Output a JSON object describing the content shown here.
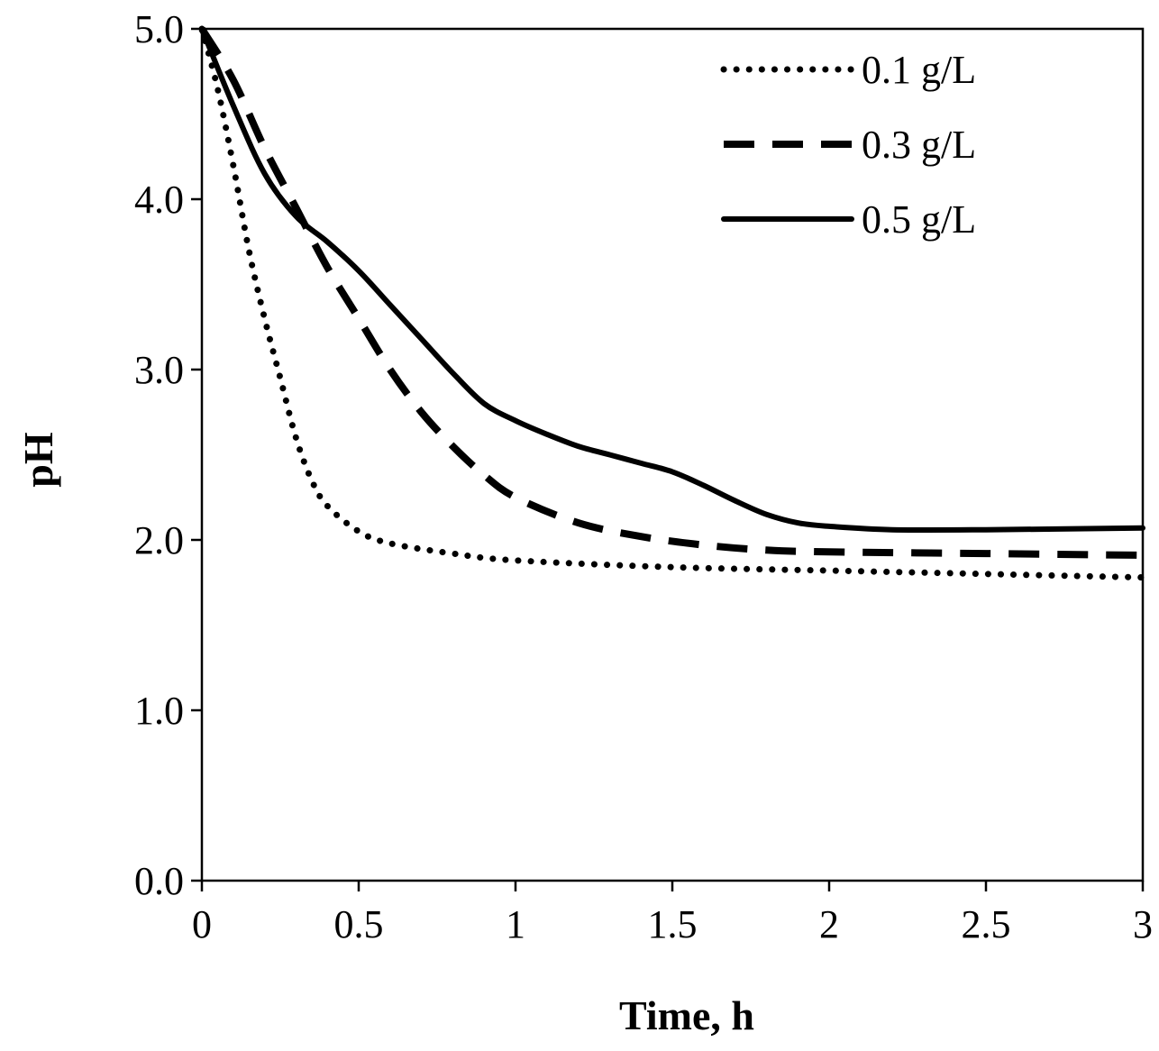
{
  "chart_data": {
    "type": "line",
    "title": "",
    "xlabel": "Time, h",
    "ylabel": "pH",
    "xlim": [
      0,
      3
    ],
    "ylim": [
      0,
      5
    ],
    "grid": false,
    "legend_position": "top-right",
    "x_ticks": [
      {
        "value": 0,
        "label": "0"
      },
      {
        "value": 0.5,
        "label": "0.5"
      },
      {
        "value": 1,
        "label": "1"
      },
      {
        "value": 1.5,
        "label": "1.5"
      },
      {
        "value": 2,
        "label": "2"
      },
      {
        "value": 2.5,
        "label": "2.5"
      },
      {
        "value": 3,
        "label": "3"
      }
    ],
    "y_ticks": [
      {
        "value": 0,
        "label": "0.0"
      },
      {
        "value": 1,
        "label": "1.0"
      },
      {
        "value": 2,
        "label": "2.0"
      },
      {
        "value": 3,
        "label": "3.0"
      },
      {
        "value": 4,
        "label": "4.0"
      },
      {
        "value": 5,
        "label": "5.0"
      }
    ],
    "series": [
      {
        "name": "0.1 g/L",
        "style": "dotted",
        "x": [
          0,
          0.05,
          0.1,
          0.15,
          0.2,
          0.25,
          0.3,
          0.35,
          0.4,
          0.5,
          0.6,
          0.8,
          1.0,
          1.5,
          2.0,
          2.5,
          3.0
        ],
        "y": [
          5.0,
          4.65,
          4.2,
          3.7,
          3.3,
          2.95,
          2.6,
          2.35,
          2.2,
          2.05,
          1.98,
          1.92,
          1.88,
          1.84,
          1.82,
          1.8,
          1.78
        ]
      },
      {
        "name": "0.3 g/L",
        "style": "dashed",
        "x": [
          0,
          0.1,
          0.2,
          0.3,
          0.4,
          0.5,
          0.6,
          0.7,
          0.8,
          0.9,
          1.0,
          1.2,
          1.4,
          1.6,
          1.8,
          2.0,
          2.5,
          3.0
        ],
        "y": [
          5.0,
          4.7,
          4.3,
          3.95,
          3.6,
          3.3,
          3.0,
          2.75,
          2.55,
          2.38,
          2.25,
          2.1,
          2.02,
          1.97,
          1.94,
          1.93,
          1.92,
          1.91
        ]
      },
      {
        "name": "0.5 g/L",
        "style": "solid",
        "x": [
          0,
          0.1,
          0.2,
          0.3,
          0.4,
          0.5,
          0.6,
          0.7,
          0.8,
          0.9,
          1.0,
          1.1,
          1.2,
          1.3,
          1.4,
          1.5,
          1.6,
          1.7,
          1.8,
          1.9,
          2.0,
          2.2,
          2.5,
          3.0
        ],
        "y": [
          5.0,
          4.55,
          4.15,
          3.9,
          3.75,
          3.58,
          3.38,
          3.18,
          2.98,
          2.8,
          2.7,
          2.62,
          2.55,
          2.5,
          2.45,
          2.4,
          2.32,
          2.23,
          2.15,
          2.1,
          2.08,
          2.06,
          2.06,
          2.07
        ]
      }
    ]
  }
}
